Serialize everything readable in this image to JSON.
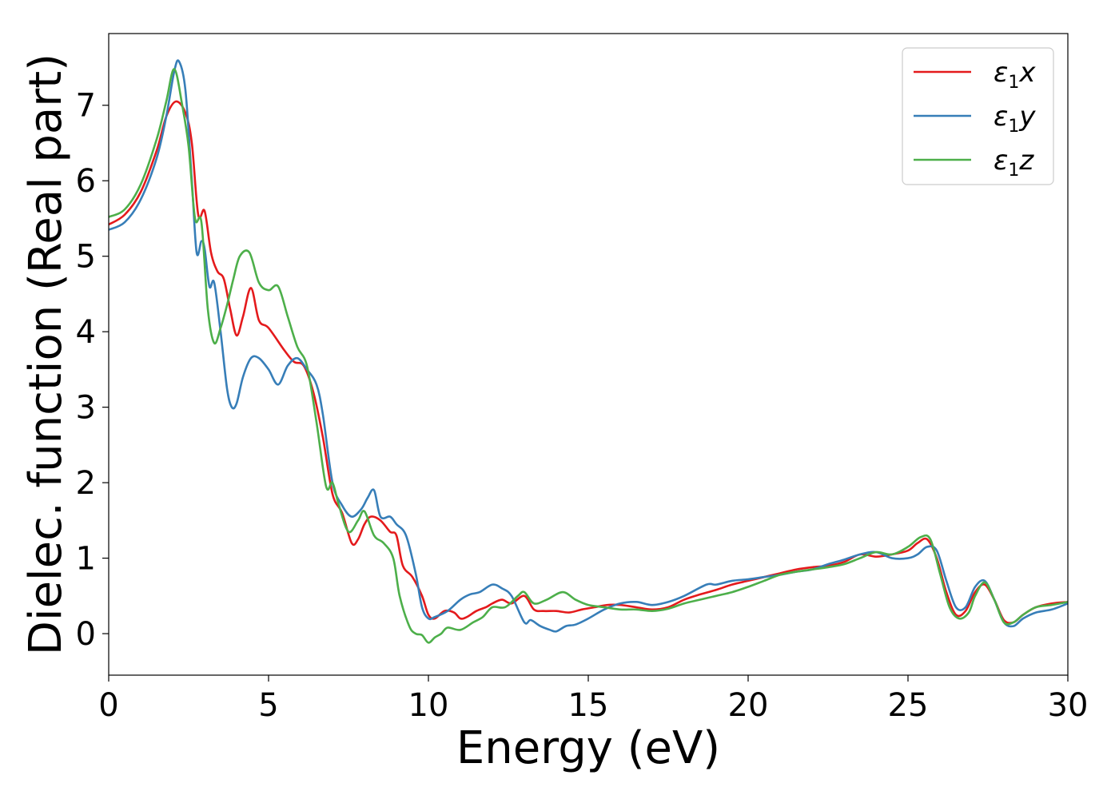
{
  "chart_data": {
    "type": "line",
    "xlabel": "Energy (eV)",
    "ylabel": "Dielec. function (Real part)",
    "xlim": [
      0,
      30
    ],
    "ylim": [
      -0.55,
      7.95
    ],
    "xticks": [
      0,
      5,
      10,
      15,
      20,
      25,
      30
    ],
    "yticks": [
      0,
      1,
      2,
      3,
      4,
      5,
      6,
      7
    ],
    "grid": false,
    "legend_position": "top-right",
    "series": [
      {
        "name": "ε1x",
        "legend": {
          "base": "ε",
          "sub": "1",
          "var": "x"
        },
        "color": "#e41a1c",
        "x": [
          0,
          0.5,
          1.0,
          1.5,
          1.8,
          2.1,
          2.4,
          2.6,
          2.8,
          3.0,
          3.2,
          3.4,
          3.6,
          3.8,
          4.0,
          4.2,
          4.45,
          4.7,
          5.0,
          5.5,
          5.8,
          6.1,
          6.4,
          6.7,
          7.0,
          7.3,
          7.6,
          7.8,
          8.0,
          8.2,
          8.5,
          8.8,
          9.0,
          9.2,
          9.5,
          9.8,
          10.0,
          10.2,
          10.5,
          10.8,
          11.0,
          11.2,
          11.5,
          11.8,
          12.0,
          12.3,
          12.6,
          13.0,
          13.3,
          13.6,
          14.0,
          14.4,
          14.8,
          15.2,
          15.6,
          16.0,
          16.5,
          17.0,
          17.5,
          18.0,
          18.5,
          19.0,
          19.5,
          20.0,
          20.5,
          21.0,
          21.5,
          22.0,
          22.5,
          23.0,
          23.5,
          24.0,
          24.5,
          25.0,
          25.3,
          25.6,
          25.9,
          26.2,
          26.5,
          26.8,
          27.1,
          27.4,
          27.7,
          28.0,
          28.3,
          28.6,
          29.0,
          29.5,
          30.0
        ],
        "y": [
          5.42,
          5.55,
          5.85,
          6.4,
          6.85,
          7.05,
          6.9,
          6.5,
          5.55,
          5.6,
          5.05,
          4.8,
          4.7,
          4.3,
          3.95,
          4.2,
          4.58,
          4.15,
          4.05,
          3.75,
          3.6,
          3.55,
          3.2,
          2.6,
          1.85,
          1.6,
          1.2,
          1.25,
          1.45,
          1.55,
          1.5,
          1.35,
          1.3,
          0.9,
          0.75,
          0.5,
          0.25,
          0.2,
          0.3,
          0.28,
          0.2,
          0.22,
          0.3,
          0.35,
          0.4,
          0.45,
          0.4,
          0.5,
          0.32,
          0.3,
          0.3,
          0.28,
          0.32,
          0.35,
          0.38,
          0.38,
          0.35,
          0.32,
          0.35,
          0.45,
          0.52,
          0.58,
          0.65,
          0.7,
          0.75,
          0.8,
          0.85,
          0.88,
          0.9,
          0.95,
          1.05,
          1.02,
          1.05,
          1.1,
          1.2,
          1.25,
          1.0,
          0.55,
          0.25,
          0.3,
          0.55,
          0.65,
          0.45,
          0.18,
          0.15,
          0.25,
          0.35,
          0.4,
          0.42
        ]
      },
      {
        "name": "ε1y",
        "legend": {
          "base": "ε",
          "sub": "1",
          "var": "y"
        },
        "color": "#377eb8",
        "x": [
          0,
          0.5,
          1.0,
          1.5,
          1.8,
          2.05,
          2.2,
          2.4,
          2.6,
          2.75,
          2.9,
          3.0,
          3.15,
          3.3,
          3.5,
          3.7,
          3.85,
          4.0,
          4.2,
          4.45,
          4.7,
          5.0,
          5.3,
          5.6,
          5.9,
          6.2,
          6.5,
          6.7,
          7.0,
          7.3,
          7.6,
          7.9,
          8.1,
          8.3,
          8.5,
          8.8,
          9.0,
          9.3,
          9.6,
          9.8,
          10.0,
          10.2,
          10.6,
          11.0,
          11.3,
          11.6,
          12.0,
          12.3,
          12.6,
          13.0,
          13.2,
          13.5,
          13.8,
          14.0,
          14.3,
          14.6,
          15.0,
          15.5,
          16.0,
          16.5,
          17.0,
          17.5,
          18.0,
          18.7,
          19.0,
          19.5,
          20.0,
          20.5,
          21.0,
          21.5,
          22.0,
          22.5,
          23.0,
          23.5,
          24.0,
          24.5,
          25.0,
          25.3,
          25.6,
          25.9,
          26.2,
          26.5,
          26.8,
          27.1,
          27.4,
          27.7,
          28.0,
          28.3,
          28.6,
          29.0,
          29.5,
          30.0
        ],
        "y": [
          5.35,
          5.45,
          5.75,
          6.3,
          6.85,
          7.45,
          7.58,
          7.2,
          6.0,
          5.05,
          5.2,
          5.1,
          4.6,
          4.65,
          4.0,
          3.25,
          3.0,
          3.05,
          3.4,
          3.65,
          3.65,
          3.5,
          3.3,
          3.55,
          3.65,
          3.5,
          3.3,
          2.9,
          2.0,
          1.7,
          1.55,
          1.65,
          1.8,
          1.9,
          1.55,
          1.55,
          1.45,
          1.3,
          0.8,
          0.35,
          0.2,
          0.22,
          0.3,
          0.45,
          0.52,
          0.55,
          0.65,
          0.6,
          0.5,
          0.15,
          0.18,
          0.1,
          0.05,
          0.03,
          0.1,
          0.12,
          0.2,
          0.32,
          0.4,
          0.42,
          0.38,
          0.42,
          0.5,
          0.65,
          0.65,
          0.7,
          0.72,
          0.75,
          0.78,
          0.82,
          0.85,
          0.92,
          0.98,
          1.05,
          1.08,
          1.0,
          1.0,
          1.05,
          1.15,
          1.1,
          0.7,
          0.35,
          0.35,
          0.62,
          0.7,
          0.45,
          0.15,
          0.1,
          0.2,
          0.28,
          0.32,
          0.4
        ]
      },
      {
        "name": "ε1z",
        "legend": {
          "base": "ε",
          "sub": "1",
          "var": "z"
        },
        "color": "#4daf4a",
        "x": [
          0,
          0.5,
          1.0,
          1.5,
          1.8,
          2.05,
          2.3,
          2.5,
          2.7,
          2.9,
          3.1,
          3.3,
          3.5,
          3.7,
          3.9,
          4.1,
          4.4,
          4.7,
          5.0,
          5.3,
          5.6,
          5.9,
          6.2,
          6.5,
          6.8,
          7.0,
          7.2,
          7.5,
          7.8,
          8.0,
          8.3,
          8.6,
          8.9,
          9.1,
          9.4,
          9.6,
          9.8,
          10.0,
          10.2,
          10.4,
          10.6,
          11.0,
          11.4,
          11.7,
          12.0,
          12.4,
          12.8,
          13.0,
          13.3,
          13.7,
          14.2,
          14.6,
          15.0,
          15.5,
          16.0,
          16.5,
          17.0,
          17.5,
          18.0,
          18.5,
          19.0,
          19.5,
          20.0,
          20.5,
          21.0,
          21.5,
          22.0,
          22.5,
          23.0,
          23.5,
          24.0,
          24.5,
          25.0,
          25.4,
          25.7,
          26.0,
          26.3,
          26.6,
          26.9,
          27.1,
          27.4,
          27.7,
          28.0,
          28.3,
          28.6,
          29.0,
          29.5,
          30.0
        ],
        "y": [
          5.52,
          5.62,
          5.95,
          6.55,
          7.05,
          7.48,
          7.0,
          6.45,
          5.5,
          5.45,
          4.3,
          3.85,
          4.05,
          4.35,
          4.7,
          5.0,
          5.05,
          4.65,
          4.55,
          4.6,
          4.2,
          3.8,
          3.55,
          2.8,
          1.95,
          2.0,
          1.7,
          1.35,
          1.5,
          1.62,
          1.3,
          1.2,
          1.0,
          0.5,
          0.1,
          0.0,
          -0.02,
          -0.12,
          -0.05,
          0.0,
          0.08,
          0.05,
          0.15,
          0.22,
          0.35,
          0.35,
          0.5,
          0.55,
          0.4,
          0.45,
          0.55,
          0.45,
          0.38,
          0.35,
          0.32,
          0.32,
          0.3,
          0.33,
          0.4,
          0.45,
          0.5,
          0.55,
          0.62,
          0.7,
          0.78,
          0.82,
          0.85,
          0.88,
          0.92,
          1.0,
          1.08,
          1.05,
          1.15,
          1.28,
          1.25,
          0.8,
          0.35,
          0.2,
          0.28,
          0.5,
          0.68,
          0.45,
          0.15,
          0.15,
          0.25,
          0.35,
          0.38,
          0.42
        ]
      }
    ]
  }
}
